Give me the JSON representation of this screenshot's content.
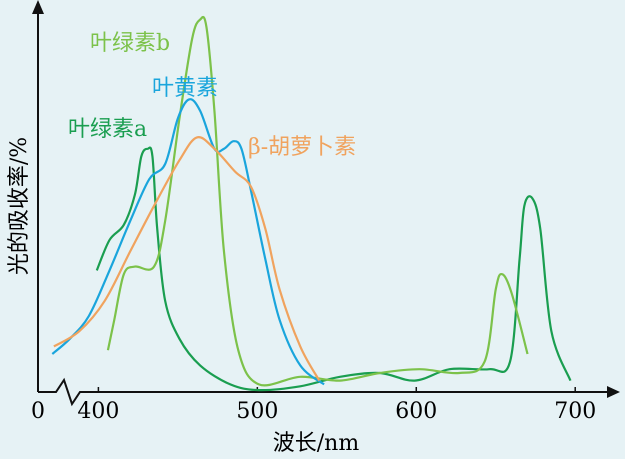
{
  "chart_data": {
    "type": "line",
    "x_label": "波长/nm",
    "y_label": "光的吸收率/%",
    "xlim": [
      362,
      720
    ],
    "ylim": [
      0,
      100
    ],
    "xticks": [
      0,
      400,
      500,
      600,
      700
    ],
    "x_axis_break": true,
    "grid": false,
    "series": [
      {
        "name": "叶绿素a",
        "color": "#1a9e50",
        "x": [
          399,
          407,
          416,
          423,
          427,
          431,
          434,
          437,
          442,
          451,
          464,
          483,
          501,
          527,
          552,
          577,
          599,
          621,
          646,
          659,
          665,
          668,
          673,
          678,
          685,
          697
        ],
        "values": [
          32,
          40,
          44,
          52,
          62,
          64,
          62,
          43,
          24,
          14,
          7,
          2,
          0.5,
          1.5,
          4,
          5,
          3,
          6,
          6,
          8,
          35,
          49,
          51,
          43,
          16,
          3
        ]
      },
      {
        "name": "叶绿素b",
        "color": "#7cc24a",
        "x": [
          406,
          410,
          416,
          423,
          435,
          442,
          451,
          459,
          464,
          468,
          473,
          479,
          488,
          501,
          527,
          552,
          577,
          602,
          627,
          643,
          650,
          654,
          660,
          670
        ],
        "values": [
          11,
          19,
          31,
          33,
          33,
          45,
          72,
          93,
          98,
          96,
          74,
          37,
          11,
          2,
          4,
          3,
          5,
          6,
          5,
          8,
          27,
          31,
          26,
          10
        ]
      },
      {
        "name": "叶黄素",
        "color": "#1aa5dc",
        "x": [
          371,
          382,
          394,
          407,
          420,
          432,
          442,
          450,
          457,
          464,
          473,
          479,
          485,
          490,
          496,
          505,
          514,
          527,
          542
        ],
        "values": [
          10,
          14,
          20,
          32,
          45,
          56,
          60,
          72,
          77,
          74,
          64,
          64,
          66,
          64,
          53,
          35,
          19,
          7,
          2
        ]
      },
      {
        "name": "β-胡萝卜素",
        "color": "#f0a35e",
        "x": [
          372,
          388,
          404,
          420,
          435,
          451,
          462,
          473,
          486,
          496,
          505,
          514,
          527,
          539
        ],
        "values": [
          12,
          16,
          24,
          37,
          49,
          61,
          67,
          64,
          58,
          54,
          43,
          27,
          12,
          3
        ]
      }
    ]
  }
}
